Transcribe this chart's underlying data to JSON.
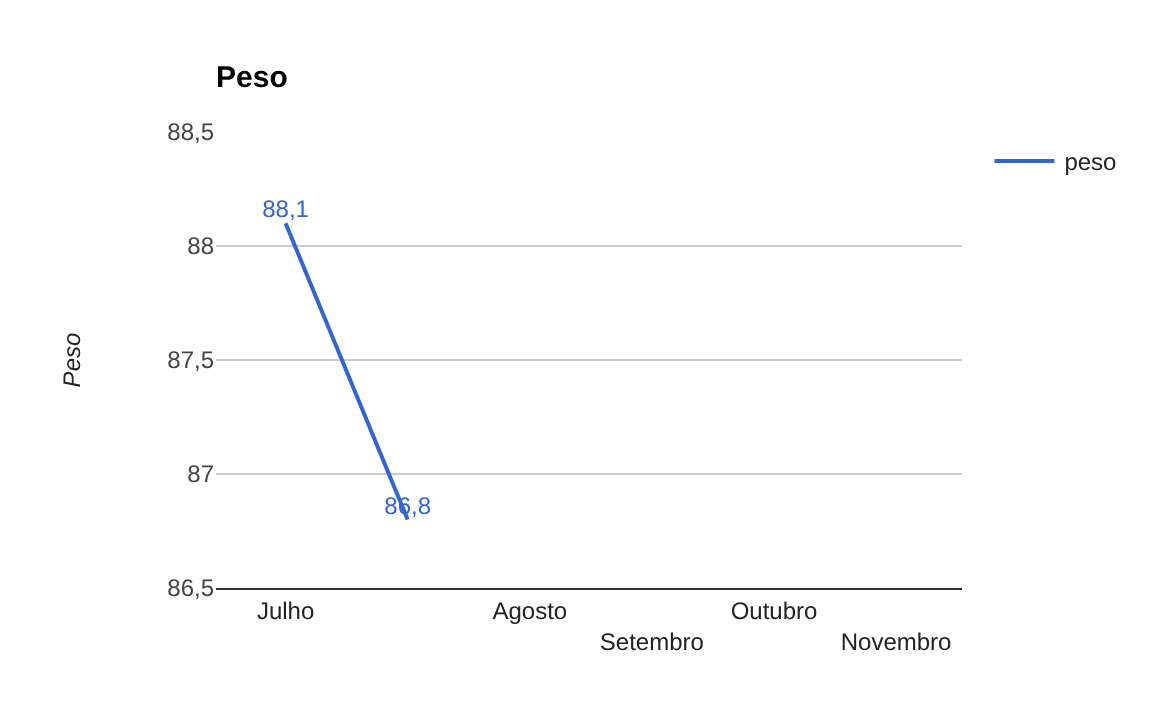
{
  "chart_data": {
    "type": "line",
    "title": "Peso",
    "ylabel": "Peso",
    "categories": [
      "Julho",
      null,
      "Agosto",
      "Setembro",
      "Outubro",
      "Novembro"
    ],
    "series": [
      {
        "name": "peso",
        "color": "#3366cc",
        "values": [
          88.1,
          86.8,
          null,
          null,
          null,
          null
        ],
        "value_labels": [
          "88,1",
          "86,8",
          null,
          null,
          null,
          null
        ]
      }
    ],
    "ylim": [
      86.5,
      88.5
    ],
    "yticks": [
      {
        "value": 86.5,
        "label": "86,5"
      },
      {
        "value": 87,
        "label": "87"
      },
      {
        "value": 87.5,
        "label": "87,5"
      },
      {
        "value": 88,
        "label": "88"
      },
      {
        "value": 88.5,
        "label": "88,5"
      }
    ],
    "grid": "y",
    "legend": "top right",
    "marker": "none",
    "line_style": "solid"
  }
}
